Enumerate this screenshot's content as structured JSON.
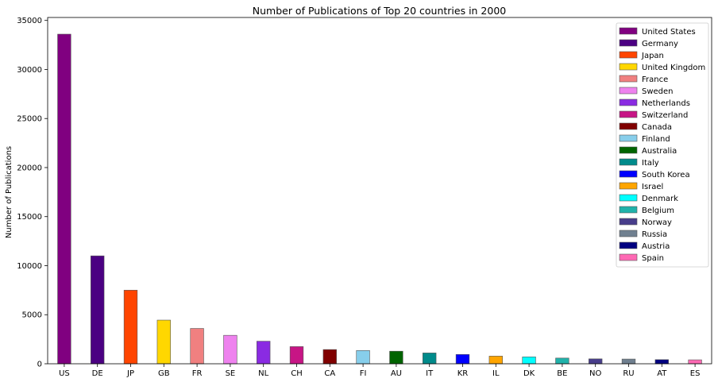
{
  "chart_data": {
    "type": "bar",
    "title": "Number of Publications of Top 20 countries in 2000",
    "xlabel": "",
    "ylabel": "Number of Publications",
    "ylim": [
      0,
      35300
    ],
    "yticks": [
      0,
      5000,
      10000,
      15000,
      20000,
      25000,
      30000,
      35000
    ],
    "grid": false,
    "legend_position": "top-right",
    "categories": [
      "US",
      "DE",
      "JP",
      "GB",
      "FR",
      "SE",
      "NL",
      "CH",
      "CA",
      "FI",
      "AU",
      "IT",
      "KR",
      "IL",
      "DK",
      "BE",
      "NO",
      "RU",
      "AT",
      "ES"
    ],
    "legend_labels": [
      "United States",
      "Germany",
      "Japan",
      "United Kingdom",
      "France",
      "Sweden",
      "Netherlands",
      "Switzerland",
      "Canada",
      "Finland",
      "Australia",
      "Italy",
      "South Korea",
      "Israel",
      "Denmark",
      "Belgium",
      "Norway",
      "Russia",
      "Austria",
      "Spain"
    ],
    "values": [
      33600,
      11000,
      7500,
      4450,
      3600,
      2900,
      2300,
      1750,
      1450,
      1350,
      1280,
      1100,
      950,
      780,
      700,
      580,
      500,
      480,
      420,
      400
    ],
    "colors": [
      "#800080",
      "#4b0082",
      "#ff4500",
      "#ffd700",
      "#f08080",
      "#ee82ee",
      "#8a2be2",
      "#c71585",
      "#800000",
      "#87ceeb",
      "#006400",
      "#008b8b",
      "#0000ff",
      "#ffa500",
      "#00ffff",
      "#20b2aa",
      "#483d8b",
      "#708090",
      "#000080",
      "#ff69b4"
    ]
  }
}
